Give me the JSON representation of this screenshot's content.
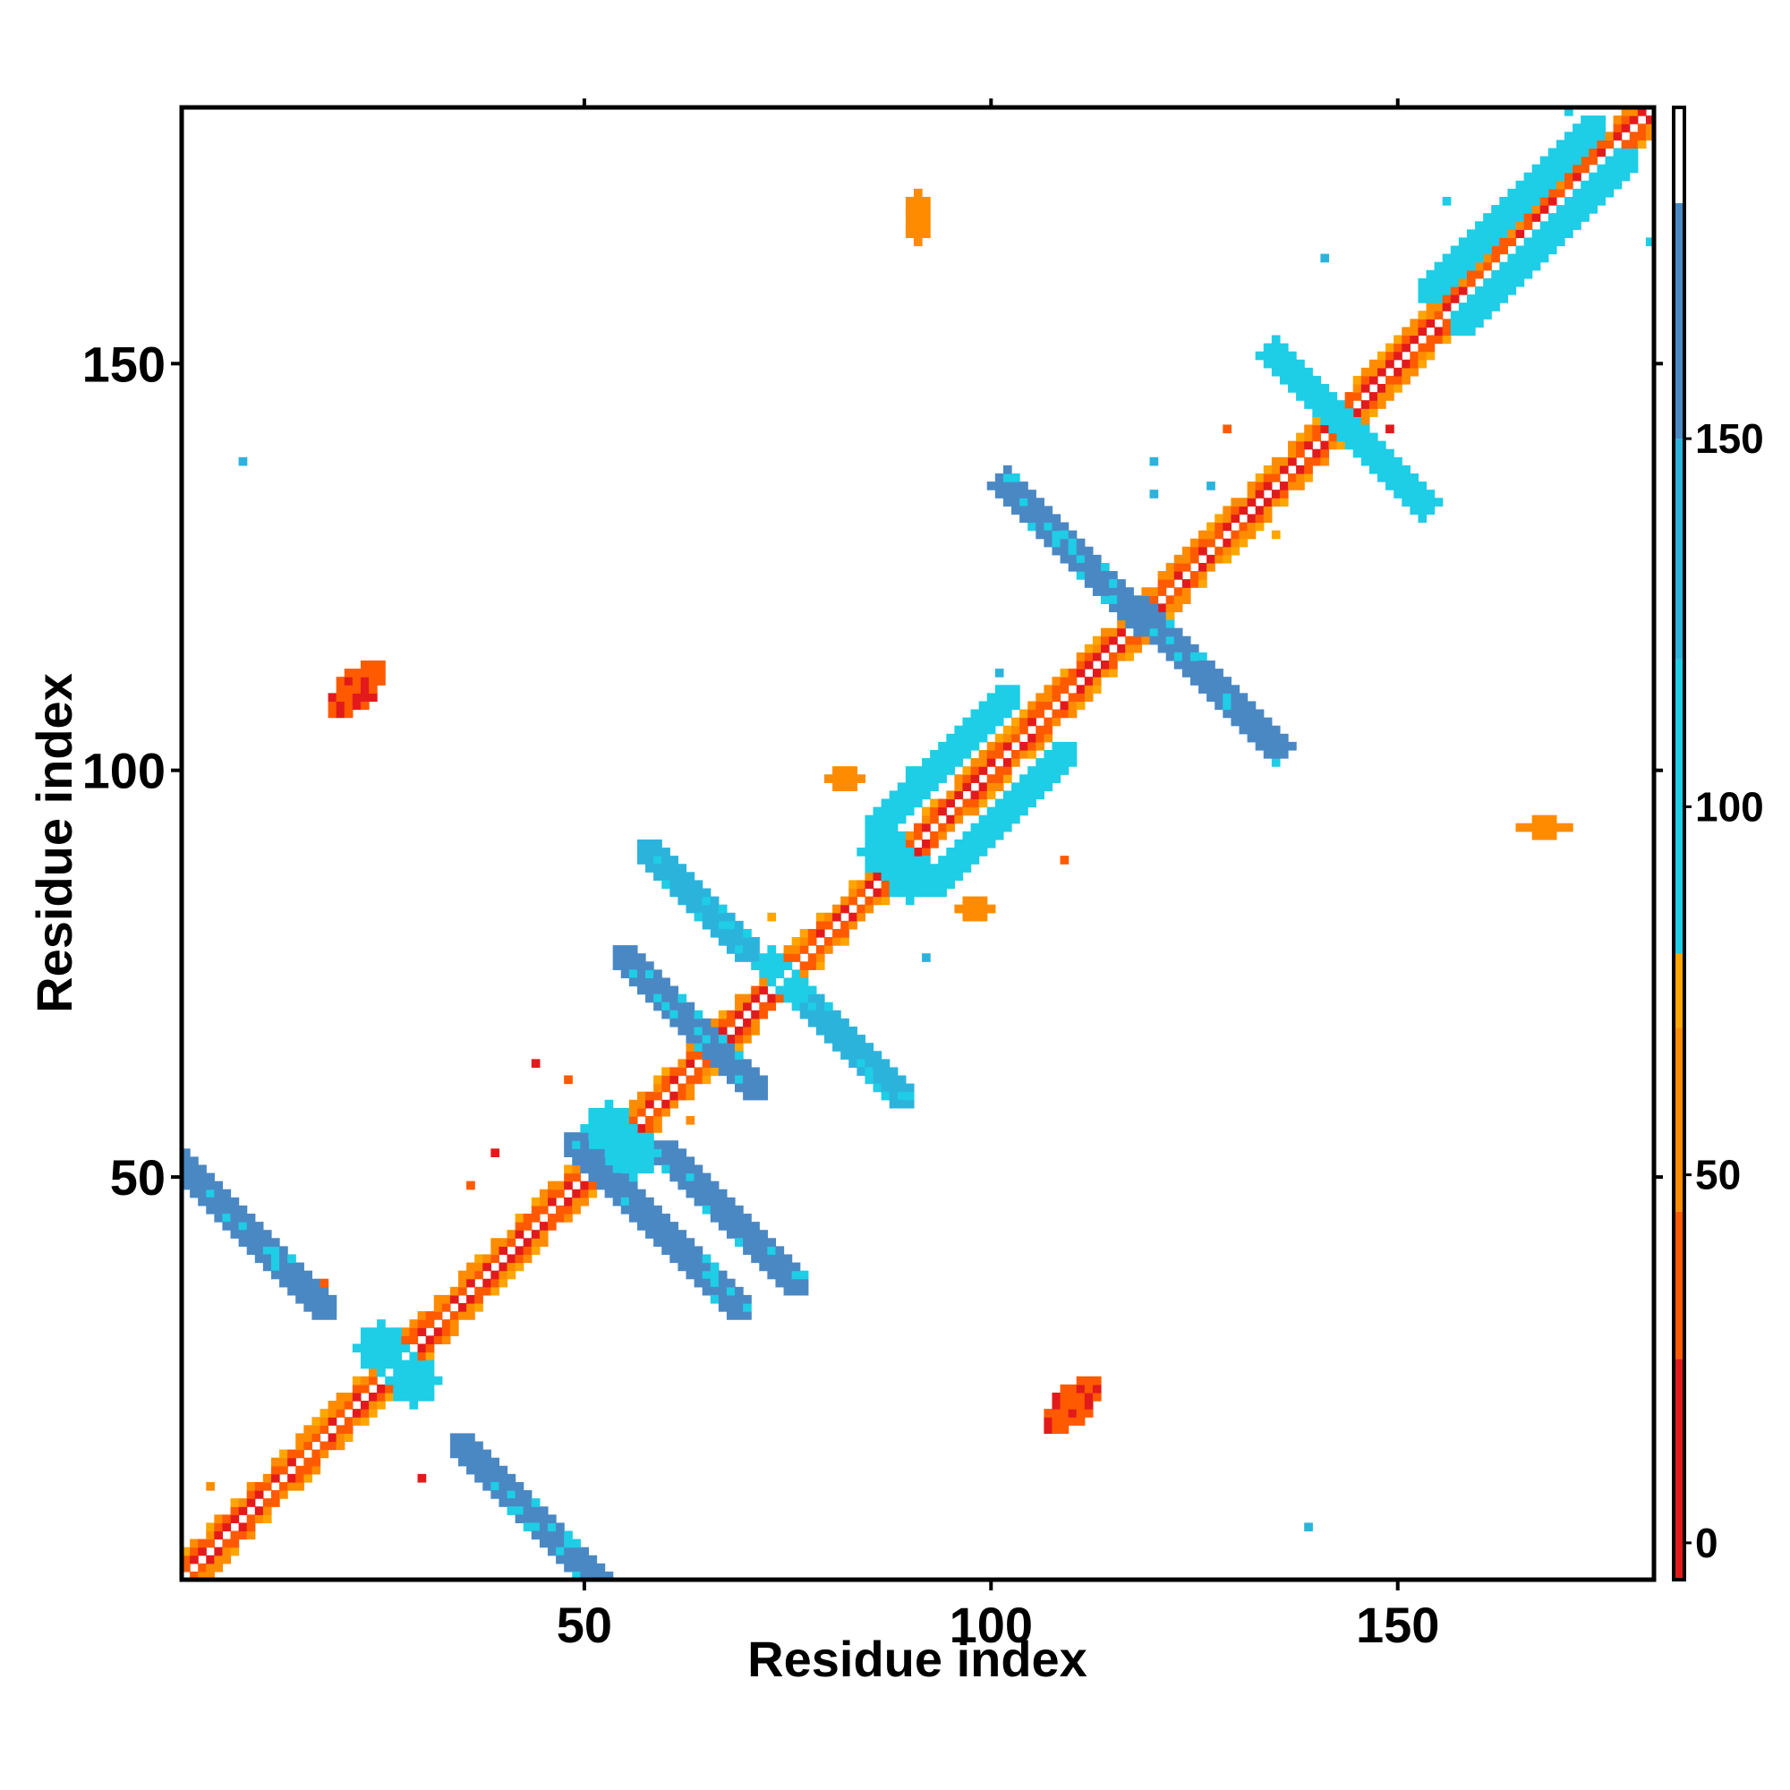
{
  "chart_data": {
    "type": "heatmap",
    "title": "",
    "xlabel": "Residue index",
    "ylabel": "Residue index",
    "xlim": [
      1,
      181
    ],
    "ylim": [
      1,
      181
    ],
    "x_ticks": [
      50,
      100,
      150
    ],
    "y_ticks": [
      50,
      100,
      150
    ],
    "colorbar": {
      "ticks": [
        0,
        50,
        100,
        150
      ],
      "range": [
        -5,
        195
      ],
      "bands": [
        {
          "from": -5,
          "to": 25,
          "color": "#e31a1c"
        },
        {
          "from": 25,
          "to": 45,
          "color": "#ff5a00"
        },
        {
          "from": 45,
          "to": 70,
          "color": "#ff8c00"
        },
        {
          "from": 70,
          "to": 80,
          "color": "#ffa500"
        },
        {
          "from": 80,
          "to": 120,
          "color": "#1ecde6"
        },
        {
          "from": 120,
          "to": 150,
          "color": "#2cb3dc"
        },
        {
          "from": 150,
          "to": 182,
          "color": "#4a88c4"
        },
        {
          "from": 182,
          "to": 195,
          "color": "#ffffff"
        }
      ]
    },
    "colors": {
      "red": "#e31a1c",
      "red_orange": "#ff5a00",
      "orange": "#ff8c00",
      "amber": "#ffa500",
      "cyan": "#1ecde6",
      "sky": "#2cb3dc",
      "steel": "#4a88c4"
    },
    "features": [
      {
        "kind": "diagonal_band",
        "from": 1,
        "to": 181
      },
      {
        "kind": "antiparallel",
        "cx": 59,
        "cy": 44,
        "len": 14,
        "width": 1.8,
        "color": "steel"
      },
      {
        "kind": "antiparallel",
        "cx": 8,
        "cy": 44,
        "len": 14,
        "width": 1.8,
        "color": "steel"
      },
      {
        "kind": "antiparallel",
        "cx": 45,
        "cy": 7,
        "len": 14,
        "width": 1.8,
        "color": "steel"
      },
      {
        "kind": "blob",
        "cx": 25,
        "cy": 29,
        "rx": 3,
        "ry": 3,
        "color": "cyan"
      },
      {
        "kind": "blob",
        "cx": 29,
        "cy": 25,
        "rx": 3,
        "ry": 3,
        "color": "cyan"
      },
      {
        "kind": "antiparallel",
        "cx": 63,
        "cy": 69,
        "len": 11,
        "width": 1.7,
        "color": "steel"
      },
      {
        "kind": "antiparallel",
        "cx": 68,
        "cy": 45,
        "len": 11,
        "width": 1.7,
        "color": "steel"
      },
      {
        "kind": "blob",
        "cx": 53,
        "cy": 56,
        "rx": 3,
        "ry": 3,
        "color": "cyan"
      },
      {
        "kind": "blob",
        "cx": 56,
        "cy": 53,
        "rx": 3,
        "ry": 3,
        "color": "cyan"
      },
      {
        "kind": "antiparallel",
        "cx": 64,
        "cy": 84,
        "len": 8,
        "width": 1.5,
        "color": "sky"
      },
      {
        "kind": "antiparallel",
        "cx": 83,
        "cy": 66,
        "len": 8,
        "width": 1.5,
        "color": "sky"
      },
      {
        "kind": "blob",
        "cx": 73,
        "cy": 76,
        "rx": 2.2,
        "ry": 2.2,
        "color": "cyan"
      },
      {
        "kind": "blob",
        "cx": 76,
        "cy": 73,
        "rx": 2.2,
        "ry": 2.2,
        "color": "cyan"
      },
      {
        "kind": "blob",
        "cx": 87,
        "cy": 90,
        "rx": 3,
        "ry": 3,
        "color": "cyan"
      },
      {
        "kind": "blob",
        "cx": 90,
        "cy": 87,
        "rx": 3,
        "ry": 3,
        "color": "cyan"
      },
      {
        "kind": "parallel",
        "cx": 101,
        "cy": 94,
        "len": 12,
        "width": 1.5,
        "color": "cyan"
      },
      {
        "kind": "parallel",
        "cx": 94,
        "cy": 101,
        "len": 12,
        "width": 1.5,
        "color": "cyan"
      },
      {
        "kind": "antiparallel",
        "cx": 110,
        "cy": 127,
        "len": 12,
        "width": 2,
        "color": "steel"
      },
      {
        "kind": "antiparallel",
        "cx": 127,
        "cy": 111,
        "len": 12,
        "width": 2,
        "color": "steel"
      },
      {
        "kind": "antiparallel",
        "cx": 140,
        "cy": 146,
        "len": 7,
        "width": 2.2,
        "color": "cyan"
      },
      {
        "kind": "antiparallel",
        "cx": 148,
        "cy": 138,
        "len": 7,
        "width": 2.2,
        "color": "cyan"
      },
      {
        "kind": "parallel",
        "cx": 168,
        "cy": 165,
        "len": 14,
        "width": 1.8,
        "color": "cyan"
      },
      {
        "kind": "parallel",
        "cx": 164,
        "cy": 169,
        "len": 14,
        "width": 1.8,
        "color": "cyan"
      },
      {
        "kind": "blob",
        "cx": 22,
        "cy": 110,
        "rx": 4.5,
        "ry": 2.2,
        "color": "red_orange",
        "angle": 45
      },
      {
        "kind": "blob",
        "cx": 110,
        "cy": 22,
        "rx": 4.5,
        "ry": 2.2,
        "color": "red_orange",
        "angle": 45
      },
      {
        "kind": "blob",
        "cx": 91,
        "cy": 168,
        "rx": 1.5,
        "ry": 3,
        "color": "orange"
      },
      {
        "kind": "blob",
        "cx": 168,
        "cy": 93,
        "rx": 3,
        "ry": 1.2,
        "color": "orange"
      },
      {
        "kind": "blob",
        "cx": 82,
        "cy": 99,
        "rx": 2,
        "ry": 1.5,
        "color": "orange"
      },
      {
        "kind": "blob",
        "cx": 98,
        "cy": 83,
        "rx": 2,
        "ry": 1.5,
        "color": "orange"
      },
      {
        "kind": "blob",
        "cx": 139,
        "cy": 7,
        "rx": 0.8,
        "ry": 0.8,
        "color": "sky"
      },
      {
        "kind": "blob",
        "cx": 8,
        "cy": 138,
        "rx": 0.8,
        "ry": 0.8,
        "color": "sky"
      }
    ]
  }
}
